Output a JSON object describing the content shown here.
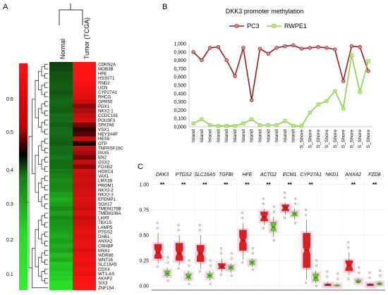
{
  "panels": {
    "a": "A",
    "b": "B",
    "c": "C"
  },
  "colors": {
    "pc3": "#9b1c1c",
    "pc3_marker": "#e88a8a",
    "rwpe1": "#8fd146",
    "rwpe1_marker": "#b8e986",
    "heat_high": "#ff1111",
    "heat_mid": "#000000",
    "heat_low": "#22dd22",
    "box_red": "#e11c1c",
    "box_green": "#5fc42a",
    "box_halo": "#f2b8d6"
  },
  "chart_data": [
    {
      "type": "heatmap",
      "title": "",
      "columns": [
        "Normal",
        "Tumor (TCGA)"
      ],
      "scale_ticks": [
        "0.6",
        "0.5",
        "0.4",
        "0.3",
        "0.2",
        "0.1"
      ],
      "rows": [
        {
          "gene": "CDKN2A",
          "values": [
            0.36,
            0.6
          ]
        },
        {
          "gene": "MOB3B",
          "values": [
            0.35,
            0.6
          ]
        },
        {
          "gene": "HFE",
          "values": [
            0.33,
            0.6
          ]
        },
        {
          "gene": "HS3ST1",
          "values": [
            0.33,
            0.6
          ]
        },
        {
          "gene": "RND2",
          "values": [
            0.32,
            0.59
          ]
        },
        {
          "gene": "UCN",
          "values": [
            0.32,
            0.58
          ]
        },
        {
          "gene": "CYP27A1",
          "values": [
            0.33,
            0.58
          ]
        },
        {
          "gene": "RHCG",
          "values": [
            0.31,
            0.57
          ]
        },
        {
          "gene": "GPR50",
          "values": [
            0.3,
            0.55
          ]
        },
        {
          "gene": "PDX1",
          "values": [
            0.31,
            0.5
          ]
        },
        {
          "gene": "NKX2-1",
          "values": [
            0.32,
            0.53
          ]
        },
        {
          "gene": "CCDC181",
          "values": [
            0.3,
            0.55
          ]
        },
        {
          "gene": "POU3F3",
          "values": [
            0.3,
            0.56
          ]
        },
        {
          "gene": "SPATA6",
          "values": [
            0.32,
            0.48
          ]
        },
        {
          "gene": "VSX1",
          "values": [
            0.3,
            0.42
          ]
        },
        {
          "gene": "HEY1H4F",
          "values": [
            0.3,
            0.45
          ]
        },
        {
          "gene": "HES5",
          "values": [
            0.31,
            0.55
          ]
        },
        {
          "gene": "OTP",
          "values": [
            0.32,
            0.4
          ]
        },
        {
          "gene": "TNFRSF10C",
          "values": [
            0.3,
            0.55
          ]
        },
        {
          "gene": "PAX5",
          "values": [
            0.3,
            0.52
          ]
        },
        {
          "gene": "EN2",
          "values": [
            0.28,
            0.48
          ]
        },
        {
          "gene": "GSX2",
          "values": [
            0.3,
            0.55
          ]
        },
        {
          "gene": "FOXB2",
          "values": [
            0.3,
            0.5
          ]
        },
        {
          "gene": "HOXC4",
          "values": [
            0.28,
            0.56
          ]
        },
        {
          "gene": "VAX1",
          "values": [
            0.27,
            0.55
          ]
        },
        {
          "gene": "LMX1B",
          "values": [
            0.25,
            0.56
          ]
        },
        {
          "gene": "PROM1",
          "values": [
            0.26,
            0.55
          ]
        },
        {
          "gene": "NKX2-2",
          "values": [
            0.25,
            0.56
          ]
        },
        {
          "gene": "NKX2-3",
          "values": [
            0.22,
            0.56
          ]
        },
        {
          "gene": "EFEMP1",
          "values": [
            0.2,
            0.57
          ]
        },
        {
          "gene": "SOX17",
          "values": [
            0.22,
            0.56
          ]
        },
        {
          "gene": "TMEM176B",
          "values": [
            0.25,
            0.55
          ]
        },
        {
          "gene": "TMEM106A",
          "values": [
            0.22,
            0.57
          ]
        },
        {
          "gene": "LHX9",
          "values": [
            0.25,
            0.55
          ]
        },
        {
          "gene": "TBX15",
          "values": [
            0.24,
            0.56
          ]
        },
        {
          "gene": "LAMP5",
          "values": [
            0.23,
            0.57
          ]
        },
        {
          "gene": "PTGS2",
          "values": [
            0.22,
            0.58
          ]
        },
        {
          "gene": "DAB1",
          "values": [
            0.2,
            0.57
          ]
        },
        {
          "gene": "ANXA2",
          "values": [
            0.22,
            0.58
          ]
        },
        {
          "gene": "CRHBP",
          "values": [
            0.2,
            0.58
          ]
        },
        {
          "gene": "MSX1",
          "values": [
            0.22,
            0.57
          ]
        },
        {
          "gene": "WDR86",
          "values": [
            0.18,
            0.58
          ]
        },
        {
          "gene": "WNT16",
          "values": [
            0.2,
            0.59
          ]
        },
        {
          "gene": "SLC16A5",
          "values": [
            0.16,
            0.58
          ]
        },
        {
          "gene": "CDX4",
          "values": [
            0.17,
            0.59
          ]
        },
        {
          "gene": "WT1-AS",
          "values": [
            0.15,
            0.58
          ]
        },
        {
          "gene": "AKAP2",
          "values": [
            0.14,
            0.59
          ]
        },
        {
          "gene": "SIX3",
          "values": [
            0.12,
            0.6
          ]
        },
        {
          "gene": "ZNF154",
          "values": [
            0.12,
            0.6
          ]
        }
      ]
    },
    {
      "type": "line",
      "title": "DKK3 promoter methylation",
      "categories": [
        "Island",
        "Island",
        "Island",
        "Island",
        "Island",
        "Island",
        "Island",
        "Island",
        "Island",
        "Island",
        "Island",
        "Island",
        "Island",
        "S_Shore",
        "S_Shore",
        "S_Shore",
        "S_Shore",
        "S_Shore",
        "S_Shore",
        "S_Shore",
        "S_Shore",
        "S_Shore"
      ],
      "series": [
        {
          "name": "PC3",
          "values": [
            0.9,
            0.8,
            0.95,
            0.96,
            0.8,
            0.61,
            0.95,
            0.32,
            0.94,
            0.88,
            0.95,
            0.97,
            0.98,
            0.94,
            0.95,
            0.96,
            0.95,
            0.93,
            0.55,
            0.97,
            0.96,
            0.67
          ]
        },
        {
          "name": "RWPE1",
          "values": [
            0.04,
            0.09,
            0.02,
            0.01,
            0.01,
            0.01,
            0.04,
            0.09,
            0.02,
            0.02,
            0.02,
            0.07,
            0.01,
            0.01,
            0.17,
            0.27,
            0.31,
            0.43,
            0.22,
            0.86,
            0.42,
            0.79
          ]
        }
      ],
      "ylim": [
        0,
        1
      ],
      "yticks": [
        "0,000",
        "0,100",
        "0,200",
        "0,300",
        "0,400",
        "0,500",
        "0,600",
        "0,700",
        "0,800",
        "0,900",
        "1,000"
      ],
      "legend": "top"
    },
    {
      "type": "box",
      "title": "",
      "categories": [
        "DKK3",
        "PTGS2",
        "SLC16A5",
        "TGFBI",
        "HFE",
        "ACTG2",
        "ECM1",
        "CYP27A1",
        "NKD1",
        "ANXA2",
        "FZD8"
      ],
      "significance": [
        "**",
        "**",
        "**",
        "**",
        "**",
        "**",
        "**",
        "**",
        "",
        "**",
        "**"
      ],
      "yticks": [
        "1.00",
        "0.75",
        "0.50",
        "0.25",
        "0.00"
      ],
      "ylim": [
        0,
        1
      ],
      "series": [
        {
          "name": "red",
          "boxes": [
            [
              0.22,
              0.27,
              0.33,
              0.41,
              0.52
            ],
            [
              0.2,
              0.25,
              0.32,
              0.42,
              0.5
            ],
            [
              0.17,
              0.24,
              0.32,
              0.4,
              0.5
            ],
            [
              0.14,
              0.17,
              0.19,
              0.22,
              0.27
            ],
            [
              0.26,
              0.35,
              0.45,
              0.55,
              0.62
            ],
            [
              0.6,
              0.64,
              0.68,
              0.73,
              0.76
            ],
            [
              0.7,
              0.74,
              0.77,
              0.8,
              0.82
            ],
            [
              0.06,
              0.18,
              0.35,
              0.52,
              0.65
            ],
            [
              0.0,
              0.0,
              0.01,
              0.02,
              0.04
            ],
            [
              0.1,
              0.15,
              0.2,
              0.25,
              0.33
            ],
            [
              0.0,
              0.0,
              0.01,
              0.02,
              0.03
            ]
          ]
        },
        {
          "name": "green",
          "boxes": [
            [
              0.08,
              0.1,
              0.12,
              0.15,
              0.18
            ],
            [
              0.05,
              0.07,
              0.09,
              0.12,
              0.15
            ],
            [
              0.05,
              0.08,
              0.1,
              0.12,
              0.15
            ],
            [
              0.13,
              0.16,
              0.18,
              0.2,
              0.22
            ],
            [
              0.19,
              0.21,
              0.23,
              0.25,
              0.27
            ],
            [
              0.48,
              0.54,
              0.58,
              0.63,
              0.68
            ],
            [
              0.65,
              0.69,
              0.71,
              0.73,
              0.76
            ],
            [
              0.03,
              0.05,
              0.08,
              0.12,
              0.15
            ],
            [
              0.0,
              0.0,
              0.0,
              0.01,
              0.02
            ],
            [
              0.02,
              0.03,
              0.04,
              0.06,
              0.08
            ],
            [
              0.0,
              0.01,
              0.02,
              0.03,
              0.05
            ]
          ]
        }
      ]
    }
  ]
}
